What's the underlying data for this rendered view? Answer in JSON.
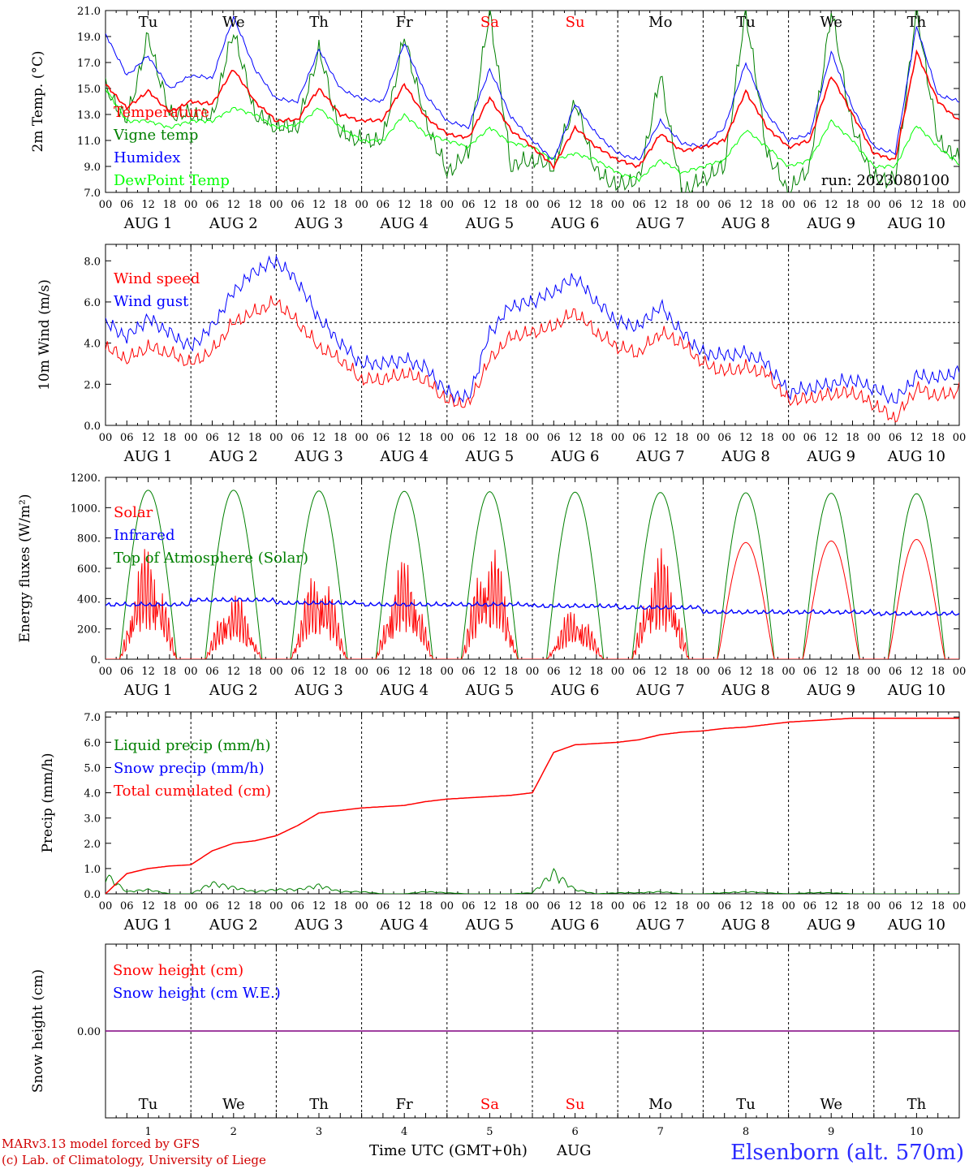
{
  "chart_data": [
    {
      "type": "line",
      "ylabel": "2m Temp. (°C)",
      "ylim": [
        7,
        21
      ],
      "yticks": [
        "7.0",
        "9.0",
        "11.0",
        "13.0",
        "15.0",
        "17.0",
        "19.0",
        "21.0"
      ],
      "run_label": "run: 2023080100",
      "weekdays": [
        {
          "label": "Tu",
          "color": "#000000"
        },
        {
          "label": "We",
          "color": "#000000"
        },
        {
          "label": "Th",
          "color": "#000000"
        },
        {
          "label": "Fr",
          "color": "#000000"
        },
        {
          "label": "Sa",
          "color": "#ff0000"
        },
        {
          "label": "Su",
          "color": "#ff0000"
        },
        {
          "label": "Mo",
          "color": "#000000"
        },
        {
          "label": "Tu",
          "color": "#000000"
        },
        {
          "label": "We",
          "color": "#000000"
        },
        {
          "label": "Th",
          "color": "#000000"
        }
      ],
      "x_hours": [
        0,
        6,
        12,
        18,
        24,
        30,
        36,
        42,
        48,
        54,
        60,
        66,
        72,
        78,
        84,
        90,
        96,
        102,
        108,
        114,
        120,
        126,
        132,
        138,
        144,
        150,
        156,
        162,
        168,
        174,
        180,
        186,
        192,
        198,
        204,
        210,
        216,
        222,
        228,
        234,
        240
      ],
      "series": [
        {
          "name": "Temperature",
          "color": "#ff0000",
          "values": [
            15.3,
            13.5,
            14.8,
            13.2,
            14.0,
            13.8,
            16.5,
            14.0,
            12.5,
            12.6,
            15.0,
            13.0,
            12.5,
            12.6,
            15.3,
            12.8,
            11.5,
            11.2,
            14.3,
            11.8,
            10.5,
            9.0,
            12.0,
            10.5,
            9.5,
            9.0,
            11.5,
            10.2,
            10.5,
            11.0,
            14.8,
            12.0,
            10.5,
            11.0,
            16.0,
            13.0,
            10.0,
            9.5,
            17.8,
            14.0,
            12.5
          ]
        },
        {
          "name": "Vigne temp",
          "color": "#008000",
          "values": [
            15.0,
            12.5,
            19.0,
            13.0,
            13.0,
            12.8,
            19.5,
            13.0,
            12.0,
            12.0,
            18.0,
            11.5,
            11.0,
            11.0,
            19.0,
            12.5,
            8.5,
            10.0,
            21.0,
            9.0,
            9.5,
            9.0,
            14.0,
            8.5,
            7.5,
            8.0,
            16.0,
            7.0,
            8.0,
            9.0,
            21.0,
            10.0,
            7.0,
            9.0,
            21.0,
            12.0,
            8.0,
            8.0,
            21.0,
            11.0,
            9.5
          ]
        },
        {
          "name": "Humidex",
          "color": "#0000ff",
          "values": [
            19.2,
            16.0,
            17.5,
            15.0,
            16.0,
            15.8,
            20.5,
            16.5,
            14.2,
            14.0,
            18.0,
            15.0,
            14.2,
            14.0,
            18.5,
            14.5,
            12.5,
            12.0,
            16.5,
            12.8,
            11.0,
            9.5,
            13.8,
            11.5,
            10.0,
            9.5,
            12.5,
            10.8,
            10.5,
            12.0,
            17.0,
            13.0,
            11.0,
            11.5,
            17.8,
            13.5,
            10.5,
            10.0,
            19.8,
            14.5,
            14.0
          ]
        },
        {
          "name": "DewPoint Temp",
          "color": "#00ff00",
          "values": [
            15.0,
            12.5,
            12.5,
            12.0,
            12.5,
            12.5,
            13.5,
            13.0,
            12.0,
            12.2,
            13.5,
            12.0,
            11.0,
            11.0,
            13.0,
            11.5,
            11.0,
            10.5,
            12.0,
            10.8,
            10.5,
            9.5,
            10.0,
            9.5,
            8.5,
            8.0,
            9.5,
            8.5,
            9.0,
            9.5,
            11.8,
            10.5,
            9.0,
            9.5,
            12.5,
            11.0,
            9.0,
            9.0,
            12.2,
            10.5,
            9.2
          ]
        }
      ]
    },
    {
      "type": "line",
      "ylabel": "10m Wind (m/s)",
      "ylim": [
        0,
        8.8
      ],
      "yticks": [
        "0.0",
        "2.0",
        "4.0",
        "6.0",
        "8.0"
      ],
      "reference_line": 5.0,
      "x_hours": [
        0,
        6,
        12,
        18,
        24,
        30,
        36,
        42,
        48,
        54,
        60,
        66,
        72,
        78,
        84,
        90,
        96,
        102,
        108,
        114,
        120,
        126,
        132,
        138,
        144,
        150,
        156,
        162,
        168,
        174,
        180,
        186,
        192,
        198,
        204,
        210,
        216,
        222,
        228,
        234,
        240
      ],
      "series": [
        {
          "name": "Wind speed",
          "color": "#ff0000",
          "values": [
            3.8,
            3.2,
            3.8,
            3.5,
            3.0,
            3.6,
            5.0,
            5.5,
            6.0,
            5.0,
            3.8,
            3.2,
            2.2,
            2.2,
            2.5,
            2.2,
            1.2,
            1.0,
            3.2,
            4.3,
            4.5,
            4.8,
            5.5,
            4.5,
            3.8,
            3.5,
            4.5,
            4.0,
            3.0,
            2.6,
            2.8,
            2.5,
            1.2,
            1.3,
            1.5,
            1.6,
            1.0,
            0.3,
            1.8,
            1.4,
            1.7
          ]
        },
        {
          "name": "Wind gust",
          "color": "#0000ff",
          "values": [
            5.0,
            4.3,
            5.2,
            4.5,
            3.8,
            4.8,
            6.5,
            7.5,
            8.0,
            7.0,
            5.2,
            4.0,
            3.0,
            3.0,
            3.2,
            2.8,
            1.6,
            1.3,
            4.5,
            5.8,
            6.0,
            6.5,
            7.2,
            6.0,
            5.0,
            4.8,
            5.8,
            4.5,
            3.5,
            3.4,
            3.5,
            3.0,
            1.6,
            1.8,
            2.0,
            2.2,
            1.8,
            1.2,
            2.4,
            2.3,
            2.6
          ]
        }
      ]
    },
    {
      "type": "line",
      "ylabel": "Energy fluxes (W/m²)",
      "ylim": [
        0,
        1200
      ],
      "yticks": [
        "0.",
        "200.",
        "400.",
        "600.",
        "800.",
        "1000.",
        "1200."
      ],
      "daily_solar_peak": [
        760,
        450,
        620,
        680,
        780,
        350,
        740,
        770,
        780,
        790
      ],
      "daily_toa_peak": [
        1115,
        1115,
        1110,
        1108,
        1105,
        1102,
        1100,
        1098,
        1095,
        1092
      ],
      "infrared_daily": [
        360,
        390,
        370,
        360,
        360,
        350,
        340,
        310,
        310,
        300
      ],
      "series": [
        {
          "name": "Solar",
          "color": "#ff0000"
        },
        {
          "name": "Infrared",
          "color": "#0000ff"
        },
        {
          "name": "Top of Atmosphere (Solar)",
          "color": "#008000"
        }
      ]
    },
    {
      "type": "line",
      "ylabel": "Precip (mm/h)",
      "ylim": [
        0,
        7.2
      ],
      "yticks": [
        "0.0",
        "1.0",
        "2.0",
        "3.0",
        "4.0",
        "5.0",
        "6.0",
        "7.0"
      ],
      "x_hours": [
        0,
        6,
        12,
        18,
        24,
        30,
        36,
        42,
        48,
        54,
        60,
        66,
        72,
        78,
        84,
        90,
        96,
        102,
        108,
        114,
        120,
        126,
        132,
        138,
        144,
        150,
        156,
        162,
        168,
        174,
        180,
        186,
        192,
        198,
        204,
        210,
        216,
        222,
        228,
        234,
        240
      ],
      "series": [
        {
          "name": "Liquid precip (mm/h)",
          "color": "#008000",
          "values": [
            0.9,
            0.1,
            0.2,
            0.0,
            0.0,
            0.5,
            0.3,
            0.1,
            0.2,
            0.2,
            0.4,
            0.1,
            0.1,
            0.0,
            0.0,
            0.1,
            0.05,
            0.0,
            0.0,
            0.0,
            0.05,
            1.0,
            0.2,
            0.0,
            0.05,
            0.05,
            0.1,
            0.0,
            0.0,
            0.05,
            0.1,
            0.05,
            0.0,
            0.05,
            0.05,
            0.0,
            0.0,
            0.0,
            0.0,
            0.0,
            0.0
          ]
        },
        {
          "name": "Snow precip (mm/h)",
          "color": "#0000ff",
          "values": [
            0,
            0,
            0,
            0,
            0,
            0,
            0,
            0,
            0,
            0,
            0,
            0,
            0,
            0,
            0,
            0,
            0,
            0,
            0,
            0,
            0,
            0,
            0,
            0,
            0,
            0,
            0,
            0,
            0,
            0,
            0,
            0,
            0,
            0,
            0,
            0,
            0,
            0,
            0,
            0,
            0
          ]
        },
        {
          "name": "Total cumulated (cm)",
          "color": "#ff0000",
          "values": [
            0.0,
            0.8,
            1.0,
            1.1,
            1.15,
            1.7,
            2.0,
            2.1,
            2.3,
            2.7,
            3.2,
            3.3,
            3.4,
            3.45,
            3.5,
            3.65,
            3.75,
            3.8,
            3.85,
            3.9,
            4.0,
            5.6,
            5.9,
            5.95,
            6.0,
            6.1,
            6.3,
            6.4,
            6.45,
            6.55,
            6.6,
            6.7,
            6.8,
            6.85,
            6.9,
            6.95,
            6.95,
            6.95,
            6.95,
            6.95,
            6.95
          ]
        }
      ]
    },
    {
      "type": "line",
      "ylabel": "Snow height (cm)",
      "yticks": [
        "0.00"
      ],
      "value": 0.0,
      "series": [
        {
          "name": "Snow height (cm)",
          "color": "#ff0000"
        },
        {
          "name": "Snow height (cm W.E.)",
          "color": "#0000ff"
        }
      ]
    }
  ],
  "hour_ticks": [
    "00",
    "06",
    "12",
    "18"
  ],
  "final_hour_tick": "00",
  "day_labels": [
    "AUG  1",
    "AUG  2",
    "AUG  3",
    "AUG  4",
    "AUG  5",
    "AUG  6",
    "AUG  7",
    "AUG  8",
    "AUG  9",
    "AUG 10"
  ],
  "bottom_day_numbers": [
    "1",
    "2",
    "3",
    "4",
    "5",
    "6",
    "7",
    "8",
    "9",
    "10"
  ],
  "x_title": "Time UTC (GMT+0h)",
  "x_month": "AUG",
  "footer": {
    "line1": "MARv3.13 model forced by GFS",
    "line2": "(c) Lab. of Climatology, University of Liege",
    "station": "Elsenborn (alt. 570m)"
  },
  "colors": {
    "red": "#ff0000",
    "blue": "#0000ff",
    "green": "#008000",
    "lightgreen": "#00ff00",
    "purple": "#800080",
    "footer_red": "#d00000",
    "station_blue": "#2a2aff"
  }
}
